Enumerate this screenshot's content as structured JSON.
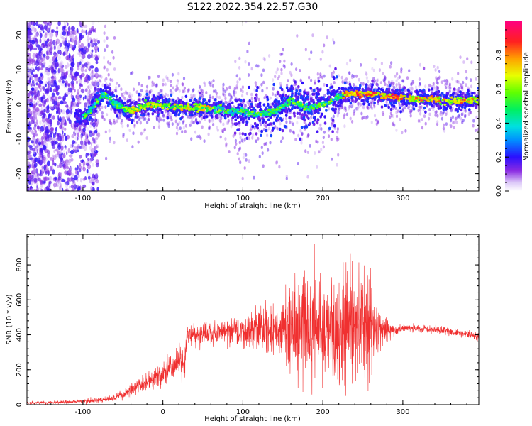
{
  "chart_data": [
    {
      "type": "heatmap",
      "title": "S122.2022.354.22.57.G30",
      "xlabel": "Height of straight line (km)",
      "ylabel": "Frequency (Hz)",
      "xlim": [
        -170,
        395
      ],
      "ylim": [
        -25,
        24
      ],
      "xticks": [
        -100,
        0,
        100,
        200,
        300
      ],
      "yticks": [
        -20,
        -10,
        0,
        10,
        20
      ],
      "ridge": {
        "x": [
          -160,
          -130,
          -110,
          -95,
          -85,
          -75,
          -68,
          -60,
          -50,
          -40,
          -30,
          -20,
          0,
          20,
          40,
          60,
          80,
          100,
          120,
          140,
          160,
          180,
          200,
          220,
          230,
          240,
          260,
          280,
          300,
          320,
          340,
          360,
          380,
          395
        ],
        "y": [
          -4,
          -4,
          -4,
          -3,
          0,
          3,
          2,
          0,
          -1,
          -2,
          -1,
          0,
          0,
          -1,
          -1,
          -1,
          -2,
          -2,
          -3,
          -2,
          1,
          -1,
          0,
          2,
          3,
          3,
          3,
          2.5,
          2,
          1.5,
          1.5,
          1,
          1,
          1.5
        ]
      },
      "colorbar": {
        "label": "Normalized spectral amplitude",
        "ticks": [
          "0.0",
          "0.2",
          "0.4",
          "0.6",
          "0.8"
        ],
        "range": [
          0,
          1
        ]
      }
    },
    {
      "type": "line",
      "xlabel": "Height of straight line (km)",
      "ylabel": "SNR (10 * v/v)",
      "xlim": [
        -170,
        395
      ],
      "ylim": [
        0,
        975
      ],
      "xticks": [
        -100,
        0,
        100,
        200,
        300
      ],
      "yticks": [
        0,
        200,
        400,
        600,
        800
      ],
      "color": "#f03030",
      "envelope": {
        "x": [
          -170,
          -100,
          -70,
          -50,
          -30,
          0,
          20,
          28,
          30,
          60,
          100,
          150,
          170,
          200,
          230,
          260,
          275,
          290,
          300,
          350,
          395
        ],
        "y": [
          10,
          18,
          30,
          55,
          110,
          180,
          240,
          260,
          400,
          410,
          420,
          440,
          450,
          440,
          450,
          450,
          430,
          420,
          440,
          425,
          390
        ],
        "spread": [
          5,
          8,
          12,
          18,
          30,
          45,
          55,
          60,
          40,
          45,
          60,
          120,
          220,
          200,
          260,
          180,
          80,
          20,
          15,
          15,
          15
        ]
      }
    }
  ]
}
